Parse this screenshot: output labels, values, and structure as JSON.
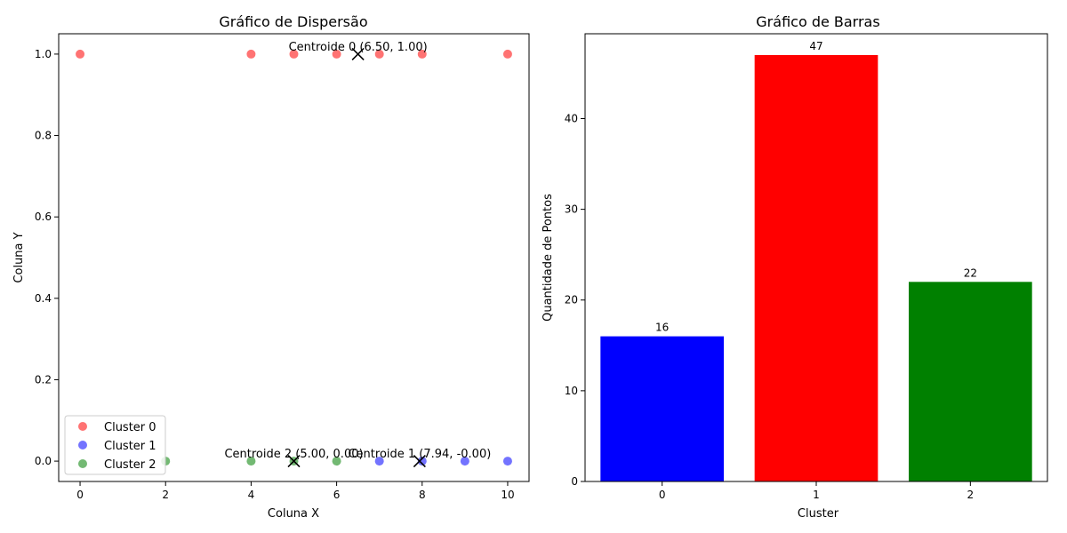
{
  "chart_data": [
    {
      "type": "scatter",
      "title": "Gráfico de Dispersão",
      "xlabel": "Coluna X",
      "ylabel": "Coluna Y",
      "xlim": [
        -0.5,
        10.5
      ],
      "ylim": [
        -0.05,
        1.05
      ],
      "xticks": [
        "0",
        "2",
        "4",
        "6",
        "8",
        "10"
      ],
      "yticks": [
        "0.0",
        "0.2",
        "0.4",
        "0.6",
        "0.8",
        "1.0"
      ],
      "legend_position": "lower-left",
      "series": [
        {
          "name": "Cluster 0",
          "color": "#ff0000",
          "points": [
            [
              0,
              1
            ],
            [
              4,
              1
            ],
            [
              5,
              1
            ],
            [
              6,
              1
            ],
            [
              7,
              1
            ],
            [
              8,
              1
            ],
            [
              10,
              1
            ]
          ]
        },
        {
          "name": "Cluster 1",
          "color": "#0000ff",
          "points": [
            [
              7,
              0
            ],
            [
              8,
              0
            ],
            [
              9,
              0
            ],
            [
              10,
              0
            ]
          ]
        },
        {
          "name": "Cluster 2",
          "color": "#008000",
          "points": [
            [
              2,
              0
            ],
            [
              4,
              0
            ],
            [
              5,
              0
            ],
            [
              6,
              0
            ]
          ]
        }
      ],
      "centroids": [
        {
          "label": "Centroide 0 (6.50, 1.00)",
          "x": 6.5,
          "y": 1.0
        },
        {
          "label": "Centroide 1 (7.94, -0.00)",
          "x": 7.94,
          "y": 0.0
        },
        {
          "label": "Centroide 2 (5.00, 0.00)",
          "x": 5.0,
          "y": 0.0
        }
      ]
    },
    {
      "type": "bar",
      "title": "Gráfico de Barras",
      "xlabel": "Cluster",
      "ylabel": "Quantidade de Pontos",
      "categories": [
        "0",
        "1",
        "2"
      ],
      "values": [
        16,
        47,
        22
      ],
      "colors": [
        "#0000ff",
        "#ff0000",
        "#008000"
      ],
      "ylim": [
        0,
        49.35
      ],
      "yticks": [
        "0",
        "10",
        "20",
        "30",
        "40"
      ],
      "data_labels": [
        "16",
        "47",
        "22"
      ]
    }
  ]
}
